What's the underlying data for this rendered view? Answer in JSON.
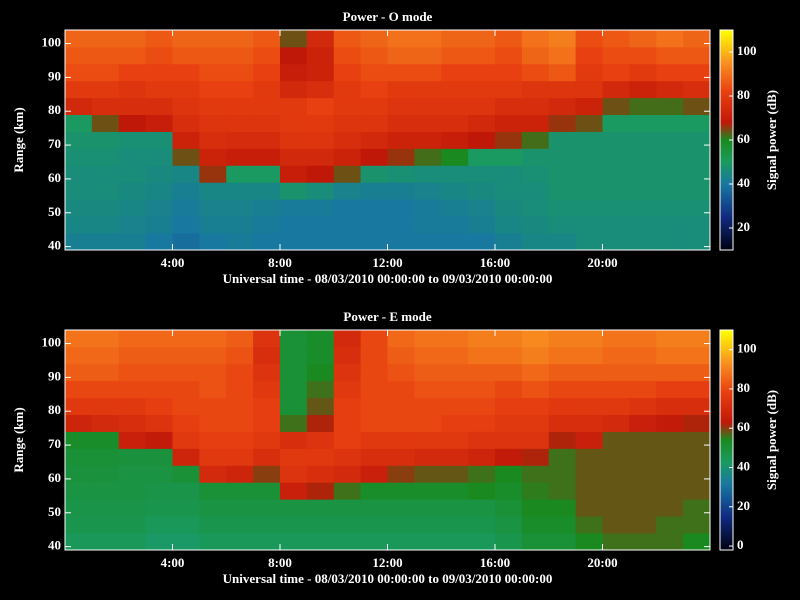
{
  "chart_data": [
    {
      "type": "heatmap",
      "title": "Power - O mode",
      "xlabel": "Universal time - 08/03/2010 00:00:00 to 09/03/2010 00:00:00",
      "ylabel": "Range (km)",
      "colorbar_label": "Signal power (dB)",
      "x": [
        0.5,
        1.5,
        2.5,
        3.5,
        4.5,
        5.5,
        6.5,
        7.5,
        8.5,
        9.5,
        10.5,
        11.5,
        12.5,
        13.5,
        14.5,
        15.5,
        16.5,
        17.5,
        18.5,
        19.5,
        20.5,
        21.5,
        22.5,
        23.5
      ],
      "y": [
        41.5,
        46.5,
        51.5,
        56.5,
        61.5,
        66.5,
        71.5,
        76.5,
        81.5,
        86.5,
        91.5,
        96.5,
        101.5
      ],
      "z": [
        [
          42,
          42,
          42,
          40,
          38,
          40,
          41,
          40,
          40,
          40,
          40,
          40,
          40,
          40,
          40,
          40,
          42,
          44,
          44,
          46,
          46,
          46,
          46,
          46
        ],
        [
          44,
          44,
          43,
          42,
          40,
          42,
          42,
          41,
          40,
          40,
          40,
          40,
          40,
          41,
          41,
          42,
          44,
          45,
          46,
          46,
          46,
          46,
          46,
          46
        ],
        [
          45,
          45,
          44,
          43,
          41,
          43,
          43,
          42,
          41,
          41,
          40,
          40,
          40,
          41,
          42,
          43,
          45,
          46,
          47,
          47,
          47,
          47,
          47,
          47
        ],
        [
          46,
          46,
          45,
          44,
          42,
          44,
          44,
          44,
          48,
          46,
          43,
          42,
          42,
          43,
          44,
          45,
          46,
          46,
          48,
          48,
          48,
          48,
          48,
          48
        ],
        [
          46,
          46,
          46,
          45,
          44,
          66,
          50,
          50,
          70,
          68,
          64,
          48,
          47,
          46,
          46,
          46,
          46,
          47,
          48,
          48,
          48,
          48,
          48,
          48
        ],
        [
          47,
          47,
          46,
          46,
          64,
          72,
          70,
          70,
          74,
          74,
          72,
          68,
          66,
          62,
          60,
          50,
          50,
          48,
          48,
          48,
          48,
          48,
          48,
          48
        ],
        [
          48,
          48,
          47,
          47,
          72,
          76,
          75,
          75,
          78,
          78,
          76,
          74,
          72,
          72,
          70,
          68,
          66,
          62,
          48,
          48,
          48,
          48,
          48,
          48
        ],
        [
          50,
          64,
          68,
          70,
          76,
          78,
          78,
          78,
          80,
          80,
          78,
          78,
          76,
          76,
          76,
          74,
          72,
          72,
          66,
          64,
          50,
          50,
          50,
          50
        ],
        [
          74,
          76,
          76,
          76,
          78,
          80,
          80,
          80,
          80,
          82,
          80,
          80,
          78,
          78,
          78,
          78,
          76,
          76,
          74,
          72,
          64,
          62,
          62,
          64
        ],
        [
          80,
          80,
          78,
          80,
          80,
          82,
          82,
          80,
          74,
          76,
          80,
          82,
          80,
          80,
          80,
          80,
          80,
          78,
          78,
          78,
          74,
          72,
          74,
          76
        ],
        [
          84,
          84,
          82,
          82,
          82,
          84,
          84,
          82,
          70,
          72,
          82,
          84,
          84,
          84,
          82,
          82,
          82,
          84,
          86,
          80,
          82,
          80,
          82,
          82
        ],
        [
          86,
          86,
          86,
          84,
          86,
          86,
          86,
          84,
          68,
          72,
          84,
          86,
          88,
          88,
          86,
          86,
          84,
          88,
          90,
          82,
          84,
          84,
          86,
          86
        ],
        [
          88,
          88,
          88,
          86,
          88,
          88,
          88,
          86,
          64,
          74,
          86,
          88,
          90,
          90,
          88,
          88,
          86,
          90,
          92,
          84,
          86,
          88,
          90,
          88
        ]
      ],
      "xlim": [
        0,
        24
      ],
      "ylim": [
        39,
        104
      ],
      "zlim": [
        10,
        110
      ],
      "xticks": [
        {
          "value": 4,
          "label": "4:00"
        },
        {
          "value": 8,
          "label": "8:00"
        },
        {
          "value": 12,
          "label": "12:00"
        },
        {
          "value": 16,
          "label": "16:00"
        },
        {
          "value": 20,
          "label": "20:00"
        }
      ],
      "yticks": [
        40,
        50,
        60,
        70,
        80,
        90,
        100
      ],
      "zticks": [
        20,
        40,
        60,
        80,
        100
      ],
      "colormap": [
        [
          0,
          "#000010"
        ],
        [
          0.15,
          "#102a80"
        ],
        [
          0.3,
          "#1878a0"
        ],
        [
          0.4,
          "#1a9a60"
        ],
        [
          0.5,
          "#1a8a20"
        ],
        [
          0.58,
          "#c01808"
        ],
        [
          0.72,
          "#e84010"
        ],
        [
          0.85,
          "#f89020"
        ],
        [
          1,
          "#ffff00"
        ]
      ]
    },
    {
      "type": "heatmap",
      "title": "Power - E mode",
      "xlabel": "Universal time - 08/03/2010 00:00:00 to 09/03/2010 00:00:00",
      "ylabel": "Range (km)",
      "colorbar_label": "Signal power (dB)",
      "x": [
        0.5,
        1.5,
        2.5,
        3.5,
        4.5,
        5.5,
        6.5,
        7.5,
        8.5,
        9.5,
        10.5,
        11.5,
        12.5,
        13.5,
        14.5,
        15.5,
        16.5,
        17.5,
        18.5,
        19.5,
        20.5,
        21.5,
        22.5,
        23.5
      ],
      "y": [
        41.5,
        46.5,
        51.5,
        56.5,
        61.5,
        66.5,
        71.5,
        76.5,
        81.5,
        86.5,
        91.5,
        96.5,
        101.5
      ],
      "z": [
        [
          44,
          44,
          44,
          42,
          42,
          44,
          44,
          44,
          44,
          44,
          44,
          44,
          44,
          44,
          44,
          44,
          46,
          50,
          50,
          54,
          56,
          56,
          56,
          54
        ],
        [
          46,
          46,
          46,
          44,
          44,
          46,
          46,
          46,
          46,
          46,
          46,
          46,
          46,
          46,
          46,
          46,
          48,
          52,
          52,
          56,
          58,
          58,
          56,
          56
        ],
        [
          47,
          47,
          47,
          46,
          46,
          48,
          48,
          48,
          48,
          48,
          48,
          48,
          48,
          48,
          48,
          48,
          50,
          54,
          54,
          58,
          58,
          58,
          58,
          56
        ],
        [
          48,
          48,
          48,
          47,
          47,
          50,
          50,
          50,
          66,
          62,
          56,
          52,
          52,
          52,
          52,
          54,
          52,
          55,
          56,
          58,
          58,
          58,
          58,
          58
        ],
        [
          49,
          49,
          48,
          48,
          50,
          70,
          68,
          60,
          74,
          72,
          70,
          66,
          60,
          58,
          58,
          56,
          54,
          56,
          56,
          58,
          58,
          58,
          58,
          58
        ],
        [
          50,
          50,
          49,
          49,
          68,
          76,
          76,
          72,
          76,
          76,
          74,
          72,
          72,
          70,
          70,
          68,
          64,
          62,
          56,
          58,
          58,
          58,
          58,
          58
        ],
        [
          52,
          52,
          66,
          64,
          76,
          78,
          78,
          76,
          72,
          74,
          78,
          76,
          76,
          76,
          76,
          74,
          74,
          74,
          62,
          66,
          58,
          58,
          58,
          58
        ],
        [
          68,
          70,
          72,
          74,
          78,
          80,
          80,
          78,
          56,
          62,
          78,
          80,
          80,
          80,
          78,
          78,
          76,
          76,
          72,
          72,
          70,
          66,
          64,
          62
        ],
        [
          76,
          76,
          76,
          78,
          80,
          80,
          80,
          78,
          50,
          58,
          78,
          80,
          80,
          80,
          80,
          80,
          78,
          78,
          76,
          76,
          76,
          74,
          72,
          72
        ],
        [
          80,
          80,
          80,
          80,
          80,
          82,
          80,
          76,
          50,
          56,
          76,
          80,
          80,
          82,
          82,
          82,
          80,
          82,
          80,
          80,
          80,
          80,
          78,
          78
        ],
        [
          84,
          84,
          82,
          82,
          82,
          82,
          80,
          74,
          50,
          54,
          74,
          80,
          82,
          84,
          84,
          84,
          84,
          86,
          84,
          84,
          84,
          84,
          84,
          84
        ],
        [
          86,
          86,
          84,
          84,
          84,
          84,
          82,
          72,
          50,
          52,
          72,
          80,
          84,
          86,
          86,
          88,
          88,
          90,
          88,
          88,
          86,
          86,
          88,
          88
        ],
        [
          88,
          88,
          86,
          86,
          86,
          86,
          84,
          74,
          50,
          52,
          70,
          80,
          86,
          88,
          88,
          90,
          90,
          92,
          90,
          90,
          88,
          88,
          90,
          90
        ]
      ],
      "xlim": [
        0,
        24
      ],
      "ylim": [
        39,
        104
      ],
      "zlim": [
        -2,
        110
      ],
      "xticks": [
        {
          "value": 4,
          "label": "4:00"
        },
        {
          "value": 8,
          "label": "8:00"
        },
        {
          "value": 12,
          "label": "12:00"
        },
        {
          "value": 16,
          "label": "16:00"
        },
        {
          "value": 20,
          "label": "20:00"
        }
      ],
      "yticks": [
        40,
        50,
        60,
        70,
        80,
        90,
        100
      ],
      "zticks": [
        0,
        20,
        40,
        60,
        80,
        100
      ],
      "colormap": [
        [
          0,
          "#000010"
        ],
        [
          0.15,
          "#102a80"
        ],
        [
          0.3,
          "#1878a0"
        ],
        [
          0.4,
          "#1a9a60"
        ],
        [
          0.5,
          "#1a8a20"
        ],
        [
          0.58,
          "#c01808"
        ],
        [
          0.72,
          "#e84010"
        ],
        [
          0.85,
          "#f89020"
        ],
        [
          1,
          "#ffff00"
        ]
      ]
    }
  ]
}
